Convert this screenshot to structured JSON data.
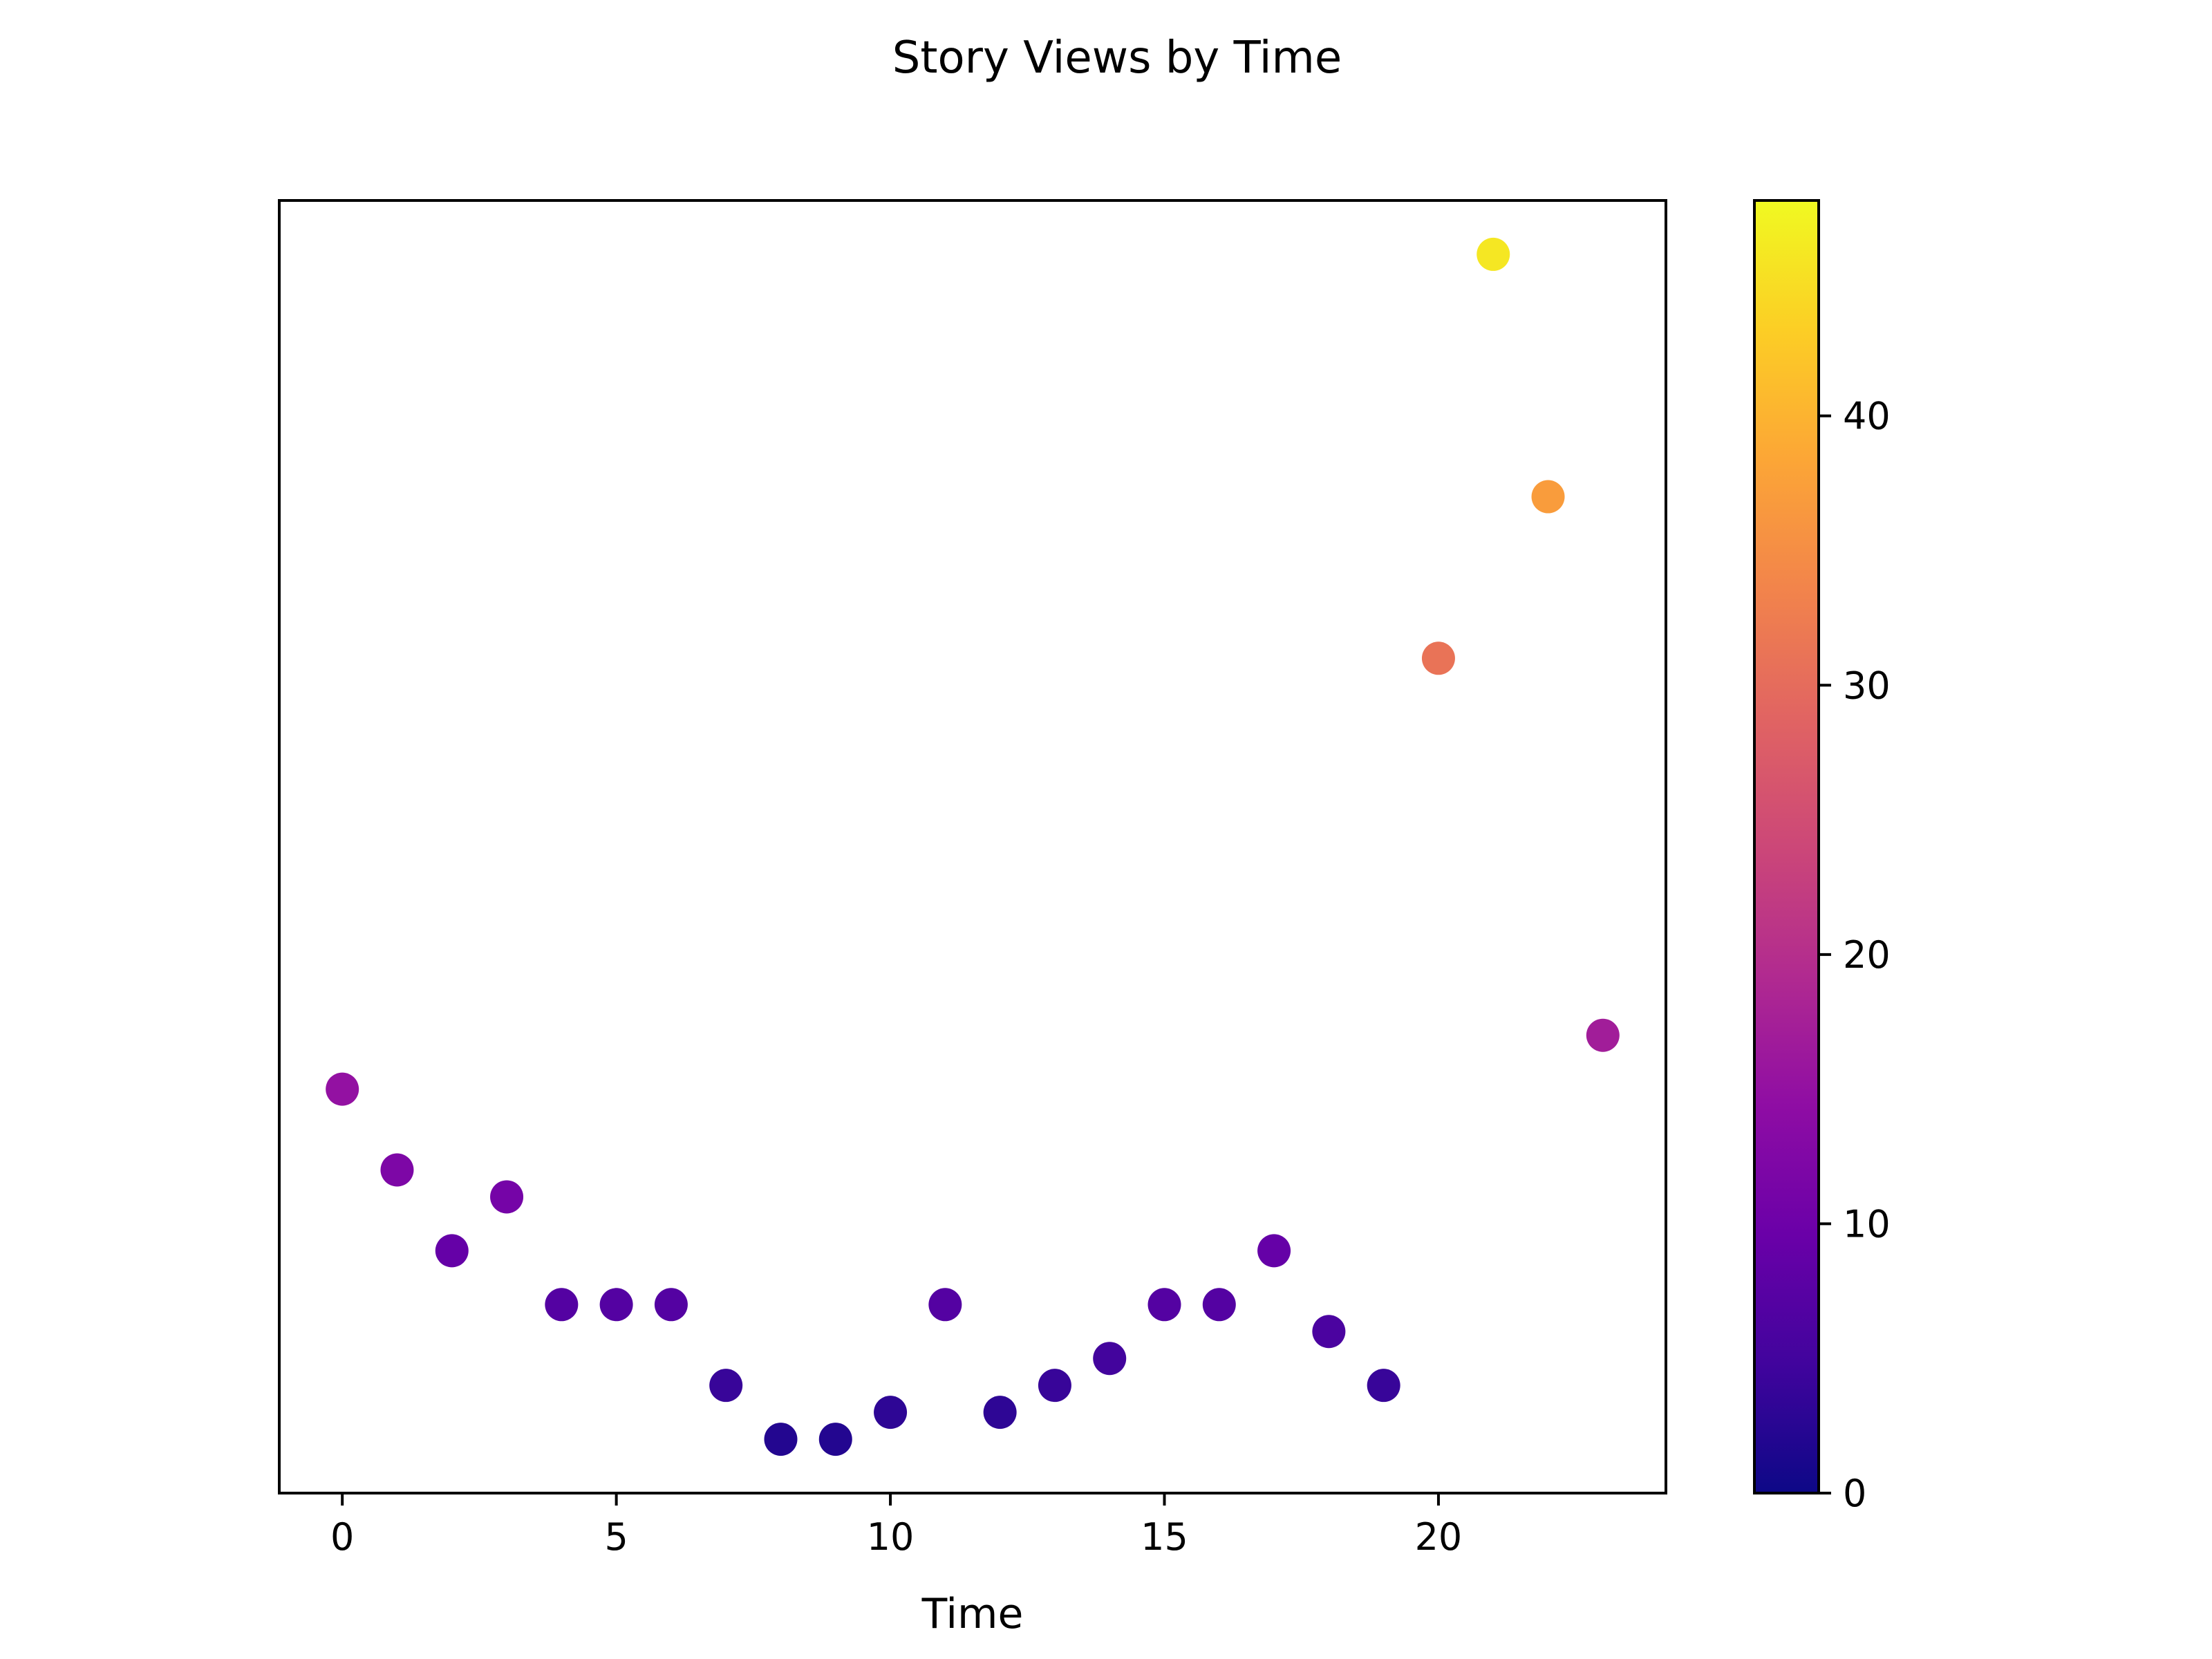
{
  "chart_data": {
    "type": "scatter",
    "title": "Story Views by Time",
    "xlabel": "Time",
    "ylabel": "",
    "xlim": [
      -1.15,
      24.15
    ],
    "ylim": [
      0,
      48
    ],
    "xticks": [
      0,
      5,
      10,
      15,
      20
    ],
    "yticks": [],
    "grid": false,
    "legend": "none",
    "series": [
      {
        "x": [
          0,
          1,
          2,
          3,
          4,
          5,
          6,
          7,
          8,
          9,
          10,
          11,
          12,
          13,
          14,
          15,
          16,
          17,
          18,
          19,
          20,
          21,
          22,
          23
        ],
        "values": [
          15,
          12,
          9,
          11,
          7,
          7,
          7,
          4,
          2,
          2,
          3,
          7,
          3,
          4,
          5,
          7,
          7,
          9,
          6,
          4,
          31,
          46,
          37,
          17
        ]
      }
    ],
    "colorbar": {
      "colormap": "plasma",
      "range": [
        0,
        48
      ],
      "ticks": [
        0,
        10,
        20,
        30,
        40
      ]
    }
  }
}
